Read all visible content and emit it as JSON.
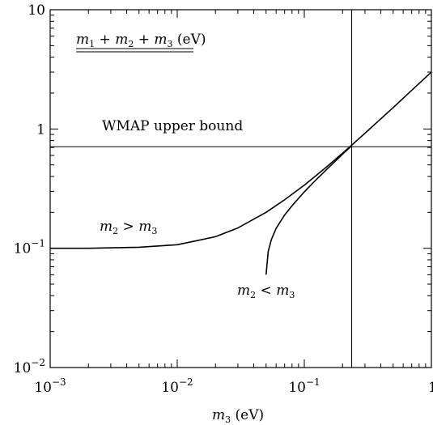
{
  "chart_data": {
    "type": "line",
    "x_scale": "log",
    "y_scale": "log",
    "xlim": [
      0.001,
      1
    ],
    "ylim": [
      0.01,
      10
    ],
    "xlabel": "m3 (eV)",
    "ylabel": "",
    "title": "m1 + m2 + m3 (eV)",
    "grid": false,
    "x_ticks": [
      {
        "value": 0.001,
        "base": "10",
        "exp": "−3"
      },
      {
        "value": 0.01,
        "base": "10",
        "exp": "−2"
      },
      {
        "value": 0.1,
        "base": "10",
        "exp": "−1"
      },
      {
        "value": 1,
        "base": "1",
        "exp": ""
      }
    ],
    "y_ticks": [
      {
        "value": 0.01,
        "base": "10",
        "exp": "−2"
      },
      {
        "value": 0.1,
        "base": "10",
        "exp": "−1"
      },
      {
        "value": 1,
        "base": "1",
        "exp": ""
      },
      {
        "value": 10,
        "base": "10",
        "exp": ""
      }
    ],
    "reference_lines": {
      "wmap_upper_bound": {
        "y": 0.71,
        "label": "WMAP upper bound"
      },
      "vertical_at_x": 0.236
    },
    "series": [
      {
        "name": "m2 > m3",
        "x": [
          0.001,
          0.002,
          0.005,
          0.01,
          0.02,
          0.03,
          0.05,
          0.07,
          0.1,
          0.15,
          0.2,
          0.236,
          0.3,
          0.5,
          0.7,
          1.0
        ],
        "y": [
          0.1,
          0.1,
          0.102,
          0.107,
          0.125,
          0.148,
          0.2,
          0.255,
          0.338,
          0.481,
          0.627,
          0.732,
          0.921,
          1.51,
          2.11,
          3.0
        ]
      },
      {
        "name": "m2 < m3",
        "x": [
          0.05,
          0.052,
          0.055,
          0.06,
          0.07,
          0.08,
          0.1,
          0.12,
          0.15,
          0.2,
          0.236
        ],
        "y": [
          0.06,
          0.094,
          0.118,
          0.147,
          0.19,
          0.227,
          0.297,
          0.363,
          0.458,
          0.615,
          0.722
        ]
      }
    ],
    "annotations": {
      "upper": "m2 > m3",
      "lower": "m2 < m3",
      "unit": "(eV)"
    }
  }
}
